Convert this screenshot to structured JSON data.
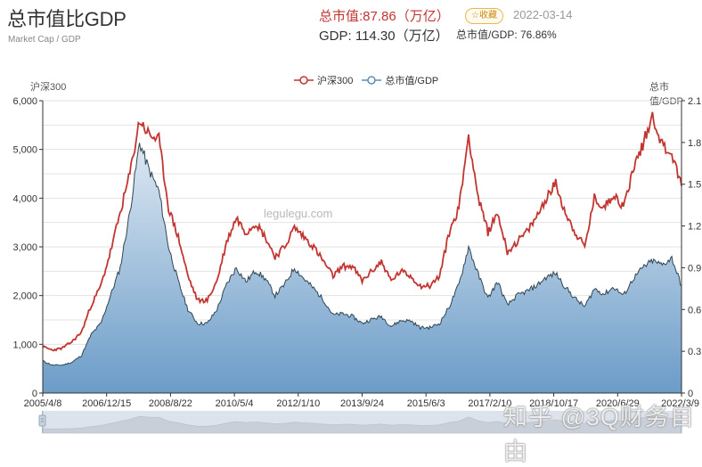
{
  "header": {
    "title": "总市值比GDP",
    "subtitle": "Market Cap / GDP",
    "market_cap_label": "总市值:87.86（万亿）",
    "gdp_label": "GDP: 114.30（万亿）",
    "favorite_label": "☆收藏",
    "date": "2022-03-14",
    "ratio_label": "总市值/GDP: 76.86%"
  },
  "legend": {
    "items": [
      {
        "label": "沪深300",
        "color": "#c23531"
      },
      {
        "label": "总市值/GDP",
        "color": "#5b8db8"
      }
    ]
  },
  "axes": {
    "left_name": "沪深300",
    "right_name": "总市值/GDP"
  },
  "watermark_site": "legulegu.com",
  "watermark_overlay": "知乎 @3Q财务自由",
  "colors": {
    "csi300_line": "#c23531",
    "ratio_line": "#2f4554",
    "ratio_fill_top": "#c9d9e8",
    "ratio_fill_bottom": "#6f9ec9",
    "grid": "#e0e0e0",
    "slider_bg": "#dfe4ec"
  },
  "chart_data": {
    "type": "line",
    "title": "总市值比GDP",
    "subtitle": "Market Cap / GDP",
    "xlabel": "",
    "ylabel_left": "沪深300",
    "ylabel_right": "总市值/GDP",
    "ylim_left": [
      0,
      6000
    ],
    "ylim_right": [
      0,
      2.1
    ],
    "yticks_left": [
      "0",
      "1,000",
      "2,000",
      "3,000",
      "4,000",
      "5,000",
      "6,000"
    ],
    "yticks_right": [
      "0",
      "0.3",
      "0.6",
      "0.9",
      "1.2",
      "1.5",
      "1.8",
      "2.1"
    ],
    "x_tick_labels": [
      "2005/4/8",
      "2006/12/15",
      "2008/8/22",
      "2010/5/4",
      "2012/1/10",
      "2013/9/24",
      "2015/6/3",
      "2017/2/10",
      "2018/10/17",
      "2020/6/29",
      "2022/3/9"
    ],
    "grid": true,
    "legend_position": "top-center",
    "x": [
      "2005-04",
      "2005-08",
      "2005-12",
      "2006-04",
      "2006-08",
      "2006-12",
      "2007-02",
      "2007-04",
      "2007-06",
      "2007-08",
      "2007-10",
      "2007-12",
      "2008-02",
      "2008-04",
      "2008-06",
      "2008-08",
      "2008-10",
      "2008-12",
      "2009-03",
      "2009-06",
      "2009-08",
      "2009-10",
      "2009-12",
      "2010-03",
      "2010-06",
      "2010-09",
      "2010-11",
      "2011-03",
      "2011-06",
      "2011-09",
      "2011-12",
      "2012-03",
      "2012-06",
      "2012-09",
      "2012-12",
      "2013-02",
      "2013-06",
      "2013-09",
      "2013-12",
      "2014-03",
      "2014-06",
      "2014-09",
      "2014-12",
      "2015-03",
      "2015-06",
      "2015-07",
      "2015-09",
      "2015-12",
      "2016-02",
      "2016-06",
      "2016-12",
      "2017-06",
      "2017-12",
      "2018-01",
      "2018-06",
      "2018-10",
      "2018-12",
      "2019-04",
      "2019-08",
      "2019-12",
      "2020-03",
      "2020-07",
      "2020-12",
      "2021-02",
      "2021-06",
      "2021-12",
      "2022-03"
    ],
    "series": [
      {
        "name": "沪深300",
        "axis": "left",
        "values": [
          950,
          880,
          920,
          1050,
          1250,
          1800,
          2200,
          2900,
          3700,
          4500,
          5600,
          5300,
          5200,
          3800,
          3200,
          2400,
          1900,
          1900,
          2300,
          3100,
          3600,
          3300,
          3500,
          3200,
          2800,
          3000,
          3400,
          3200,
          3000,
          2700,
          2400,
          2600,
          2600,
          2300,
          2500,
          2700,
          2300,
          2500,
          2400,
          2200,
          2200,
          2400,
          3300,
          3800,
          5300,
          4000,
          3300,
          3700,
          2900,
          3100,
          3300,
          3600,
          4000,
          4300,
          3700,
          3300,
          3000,
          4000,
          3800,
          4100,
          3800,
          4600,
          5100,
          5700,
          5100,
          4900,
          4250
        ]
      },
      {
        "name": "总市值/GDP",
        "axis": "right",
        "values": [
          0.23,
          0.2,
          0.2,
          0.22,
          0.27,
          0.42,
          0.5,
          0.7,
          0.9,
          1.3,
          1.8,
          1.6,
          1.45,
          1.05,
          0.8,
          0.6,
          0.5,
          0.5,
          0.6,
          0.78,
          0.9,
          0.8,
          0.88,
          0.82,
          0.7,
          0.78,
          0.9,
          0.82,
          0.75,
          0.67,
          0.56,
          0.57,
          0.55,
          0.5,
          0.53,
          0.55,
          0.48,
          0.52,
          0.52,
          0.47,
          0.47,
          0.5,
          0.62,
          0.78,
          1.05,
          0.85,
          0.68,
          0.8,
          0.63,
          0.7,
          0.73,
          0.77,
          0.83,
          0.86,
          0.76,
          0.68,
          0.62,
          0.75,
          0.71,
          0.76,
          0.7,
          0.82,
          0.9,
          0.95,
          0.92,
          0.97,
          0.77
        ]
      }
    ]
  }
}
